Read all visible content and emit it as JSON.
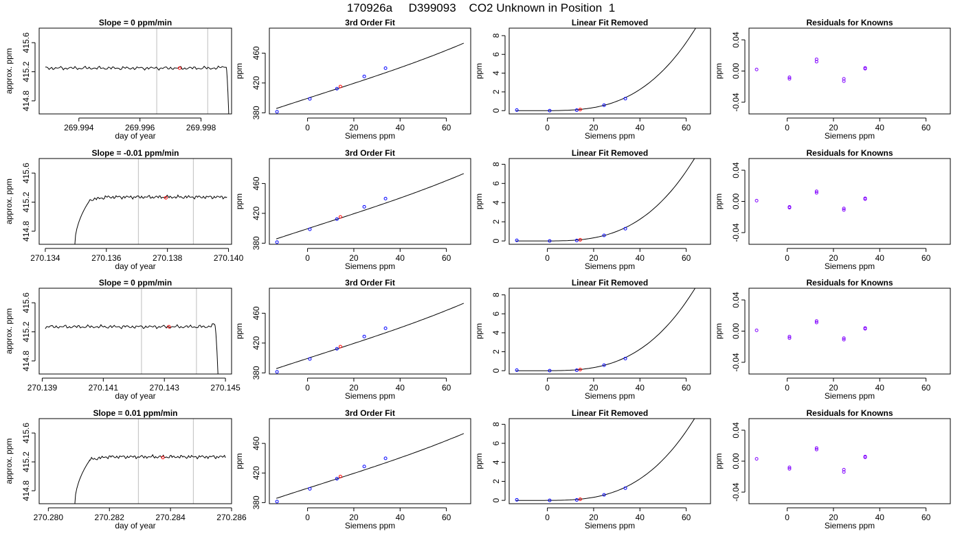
{
  "page": {
    "title": "170926a     D399093    CO2 Unknown in Position  1"
  },
  "colors": {
    "trace": "#000000",
    "marker_band": "#c8c8c8",
    "unknown_point": "#ff0000",
    "known_point": "#0000ff",
    "residual_point": "#8000ff"
  },
  "chart_data": [
    {
      "type": "line",
      "title": "Slope =  0  ppm/min",
      "xlabel": "day of year",
      "ylabel": "approx. ppm",
      "xlim": [
        269.9927,
        269.999
      ],
      "ylim": [
        414.62,
        415.8
      ],
      "xticks": [
        269.994,
        269.996,
        269.998
      ],
      "xtick_labels": [
        "269.994",
        "269.996",
        "269.998"
      ],
      "yticks": [
        414.8,
        415.2,
        415.6
      ],
      "ytick_labels": [
        "414.8",
        "415.2",
        "415.6"
      ],
      "trace": {
        "x_start": 269.9929,
        "x_end": 269.9988,
        "level": 415.25,
        "rise_start": null,
        "rise_end": null,
        "drop_start": 269.99882,
        "drop_end": 269.99892
      },
      "vertical_lines": [
        269.99655,
        269.99822
      ],
      "point": {
        "x": 269.9973,
        "y": 415.25
      }
    },
    {
      "type": "line",
      "title": "3rd Order Fit",
      "xlabel": "Siemens ppm",
      "ylabel": "ppm",
      "xlim": [
        -16.5,
        70.5
      ],
      "ylim": [
        378.5,
        493.5
      ],
      "xticks": [
        0,
        20,
        40,
        60
      ],
      "xtick_labels": [
        "0",
        "20",
        "40",
        "60"
      ],
      "yticks": [
        380,
        420,
        460
      ],
      "ytick_labels": [
        "380",
        "420",
        "460"
      ],
      "curve": {
        "x_start": -13.5,
        "x_end": 67.5,
        "offset": 399.4,
        "slope": 1.0,
        "cubic": 2.64e-05
      },
      "known_points": [
        [
          -13.2,
          381.4
        ],
        [
          1.0,
          398.6
        ],
        [
          12.7,
          412.3
        ],
        [
          24.5,
          428.8
        ],
        [
          33.7,
          439.8
        ]
      ],
      "unknown_point": [
        14.2,
        415.2
      ]
    },
    {
      "type": "line",
      "title": "Linear Fit Removed",
      "xlabel": "Siemens ppm",
      "ylabel": "ppm",
      "xlim": [
        -16.5,
        70.5
      ],
      "ylim": [
        -0.35,
        8.8
      ],
      "xticks": [
        0,
        20,
        40,
        60
      ],
      "xtick_labels": [
        "0",
        "20",
        "40",
        "60"
      ],
      "yticks": [
        0,
        2,
        4,
        6,
        8
      ],
      "ytick_labels": [
        "0",
        "2",
        "4",
        "6",
        "8"
      ],
      "curve": {
        "x_start": -13.5,
        "x_end": 67.5,
        "offset": 0,
        "slope": 0,
        "cubic": 2.64e-05
      },
      "known_points": [
        [
          -13.2,
          0.06
        ],
        [
          1.0,
          0.0
        ],
        [
          12.7,
          0.05
        ],
        [
          24.5,
          0.58
        ],
        [
          33.7,
          1.28
        ]
      ],
      "unknown_point": [
        14.2,
        0.12
      ]
    },
    {
      "type": "scatter",
      "title": "Residuals for Knowns",
      "xlabel": "Siemens ppm",
      "ylabel": "ppm",
      "xlim": [
        -16.5,
        70.5
      ],
      "ylim": [
        -0.055,
        0.055
      ],
      "xticks": [
        0,
        20,
        40,
        60
      ],
      "xtick_labels": [
        "0",
        "20",
        "40",
        "60"
      ],
      "yticks": [
        -0.04,
        0.0,
        0.04
      ],
      "ytick_labels": [
        "-0.04",
        "0.00",
        "0.04"
      ],
      "points": [
        [
          -13.2,
          0.002
        ],
        [
          1.0,
          -0.008
        ],
        [
          1.0,
          -0.01
        ],
        [
          12.7,
          0.015
        ],
        [
          12.7,
          0.012
        ],
        [
          24.5,
          -0.01
        ],
        [
          24.5,
          -0.013
        ],
        [
          33.7,
          0.004
        ],
        [
          33.7,
          0.003
        ]
      ]
    },
    {
      "type": "line",
      "title": "Slope =  -0.01  ppm/min",
      "xlabel": "day of year",
      "ylabel": "approx. ppm",
      "xlim": [
        270.1338,
        270.1401
      ],
      "ylim": [
        414.62,
        415.8
      ],
      "xticks": [
        270.134,
        270.136,
        270.138,
        270.14
      ],
      "xtick_labels": [
        "270.134",
        "270.136",
        "270.138",
        "270.140"
      ],
      "yticks": [
        414.8,
        415.2,
        415.6
      ],
      "ytick_labels": [
        "414.8",
        "415.2",
        "415.6"
      ],
      "trace": {
        "x_start": 270.13495,
        "x_end": 270.13995,
        "level": 415.27,
        "rise_start": 270.13495,
        "rise_end": 270.13545,
        "drop_start": null,
        "drop_end": null
      },
      "vertical_lines": [
        270.13705,
        270.13885
      ],
      "point": {
        "x": 270.13795,
        "y": 415.26
      }
    },
    {
      "type": "line",
      "title": "3rd Order Fit",
      "xlabel": "Siemens ppm",
      "ylabel": "ppm",
      "xlim": [
        -16.5,
        70.5
      ],
      "ylim": [
        378.5,
        493.5
      ],
      "xticks": [
        0,
        20,
        40,
        60
      ],
      "xtick_labels": [
        "0",
        "20",
        "40",
        "60"
      ],
      "yticks": [
        380,
        420,
        460
      ],
      "ytick_labels": [
        "380",
        "420",
        "460"
      ],
      "curve": {
        "x_start": -13.5,
        "x_end": 67.5,
        "offset": 399.4,
        "slope": 1.0,
        "cubic": 2.64e-05
      },
      "known_points": [
        [
          -13.2,
          381.4
        ],
        [
          1.0,
          398.6
        ],
        [
          12.7,
          412.3
        ],
        [
          24.5,
          428.8
        ],
        [
          33.7,
          439.8
        ]
      ],
      "unknown_point": [
        14.2,
        415.2
      ]
    },
    {
      "type": "line",
      "title": "Linear Fit Removed",
      "xlabel": "Siemens ppm",
      "ylabel": "ppm",
      "xlim": [
        -16.5,
        70.5
      ],
      "ylim": [
        -0.35,
        8.6
      ],
      "xticks": [
        0,
        20,
        40,
        60
      ],
      "xtick_labels": [
        "0",
        "20",
        "40",
        "60"
      ],
      "yticks": [
        0,
        2,
        4,
        6,
        8
      ],
      "ytick_labels": [
        "0",
        "2",
        "4",
        "6",
        "8"
      ],
      "curve": {
        "x_start": -13.5,
        "x_end": 67.5,
        "offset": 0,
        "slope": 0,
        "cubic": 2.64e-05
      },
      "known_points": [
        [
          -13.2,
          0.06
        ],
        [
          1.0,
          0.0
        ],
        [
          12.7,
          0.05
        ],
        [
          24.5,
          0.58
        ],
        [
          33.7,
          1.28
        ]
      ],
      "unknown_point": [
        14.2,
        0.12
      ]
    },
    {
      "type": "scatter",
      "title": "Residuals for Knowns",
      "xlabel": "Siemens ppm",
      "ylabel": "ppm",
      "xlim": [
        -16.5,
        70.5
      ],
      "ylim": [
        -0.055,
        0.055
      ],
      "xticks": [
        0,
        20,
        40,
        60
      ],
      "xtick_labels": [
        "0",
        "20",
        "40",
        "60"
      ],
      "yticks": [
        -0.04,
        0.0,
        0.04
      ],
      "ytick_labels": [
        "-0.04",
        "0.00",
        "0.04"
      ],
      "points": [
        [
          -13.2,
          0.001
        ],
        [
          1.0,
          -0.007
        ],
        [
          1.0,
          -0.008
        ],
        [
          12.7,
          0.013
        ],
        [
          12.7,
          0.011
        ],
        [
          24.5,
          -0.009
        ],
        [
          24.5,
          -0.011
        ],
        [
          33.7,
          0.004
        ],
        [
          33.7,
          0.003
        ]
      ]
    },
    {
      "type": "line",
      "title": "Slope =  0  ppm/min",
      "xlabel": "day of year",
      "ylabel": "approx. ppm",
      "xlim": [
        270.1389,
        270.1452
      ],
      "ylim": [
        414.62,
        415.8
      ],
      "xticks": [
        270.139,
        270.141,
        270.143,
        270.145
      ],
      "xtick_labels": [
        "270.139",
        "270.141",
        "270.143",
        "270.145"
      ],
      "yticks": [
        414.8,
        415.2,
        415.6
      ],
      "ytick_labels": [
        "414.8",
        "415.2",
        "415.6"
      ],
      "trace": {
        "x_start": 270.1391,
        "x_end": 270.1447,
        "level": 415.27,
        "rise_start": null,
        "rise_end": null,
        "drop_start": 270.14465,
        "drop_end": 270.14477
      },
      "vertical_lines": [
        270.14225,
        270.14405
      ],
      "point": {
        "x": 270.14315,
        "y": 415.27
      }
    },
    {
      "type": "line",
      "title": "3rd Order Fit",
      "xlabel": "Siemens ppm",
      "ylabel": "ppm",
      "xlim": [
        -16.5,
        70.5
      ],
      "ylim": [
        378.5,
        493.5
      ],
      "xticks": [
        0,
        20,
        40,
        60
      ],
      "xtick_labels": [
        "0",
        "20",
        "40",
        "60"
      ],
      "yticks": [
        380,
        420,
        460
      ],
      "ytick_labels": [
        "380",
        "420",
        "460"
      ],
      "curve": {
        "x_start": -13.5,
        "x_end": 67.5,
        "offset": 399.4,
        "slope": 1.0,
        "cubic": 2.64e-05
      },
      "known_points": [
        [
          -13.2,
          381.4
        ],
        [
          1.0,
          398.6
        ],
        [
          12.7,
          412.3
        ],
        [
          24.5,
          428.8
        ],
        [
          33.7,
          439.8
        ]
      ],
      "unknown_point": [
        14.2,
        415.2
      ]
    },
    {
      "type": "line",
      "title": "Linear Fit Removed",
      "xlabel": "Siemens ppm",
      "ylabel": "ppm",
      "xlim": [
        -16.5,
        70.5
      ],
      "ylim": [
        -0.35,
        8.7
      ],
      "xticks": [
        0,
        20,
        40,
        60
      ],
      "xtick_labels": [
        "0",
        "20",
        "40",
        "60"
      ],
      "yticks": [
        0,
        2,
        4,
        6,
        8
      ],
      "ytick_labels": [
        "0",
        "2",
        "4",
        "6",
        "8"
      ],
      "curve": {
        "x_start": -13.5,
        "x_end": 67.5,
        "offset": 0,
        "slope": 0,
        "cubic": 2.64e-05
      },
      "known_points": [
        [
          -13.2,
          0.06
        ],
        [
          1.0,
          0.0
        ],
        [
          12.7,
          0.05
        ],
        [
          24.5,
          0.58
        ],
        [
          33.7,
          1.28
        ]
      ],
      "unknown_point": [
        14.2,
        0.12
      ]
    },
    {
      "type": "scatter",
      "title": "Residuals for Knowns",
      "xlabel": "Siemens ppm",
      "ylabel": "ppm",
      "xlim": [
        -16.5,
        70.5
      ],
      "ylim": [
        -0.055,
        0.055
      ],
      "xticks": [
        0,
        20,
        40,
        60
      ],
      "xtick_labels": [
        "0",
        "20",
        "40",
        "60"
      ],
      "yticks": [
        -0.04,
        0.0,
        0.04
      ],
      "ytick_labels": [
        "-0.04",
        "0.00",
        "0.04"
      ],
      "points": [
        [
          -13.2,
          0.001
        ],
        [
          1.0,
          -0.007
        ],
        [
          1.0,
          -0.009
        ],
        [
          12.7,
          0.013
        ],
        [
          12.7,
          0.011
        ],
        [
          24.5,
          -0.009
        ],
        [
          24.5,
          -0.011
        ],
        [
          33.7,
          0.004
        ],
        [
          33.7,
          0.003
        ]
      ]
    },
    {
      "type": "line",
      "title": "Slope =  0.01  ppm/min",
      "xlabel": "day of year",
      "ylabel": "approx. ppm",
      "xlim": [
        270.2797,
        270.286
      ],
      "ylim": [
        414.62,
        415.8
      ],
      "xticks": [
        270.28,
        270.282,
        270.284,
        270.286
      ],
      "xtick_labels": [
        "270.280",
        "270.282",
        "270.284",
        "270.286"
      ],
      "yticks": [
        414.8,
        415.2,
        415.6
      ],
      "ytick_labels": [
        "414.8",
        "415.2",
        "415.6"
      ],
      "trace": {
        "x_start": 270.28085,
        "x_end": 270.2858,
        "level": 415.27,
        "rise_start": 270.28085,
        "rise_end": 270.28135,
        "drop_start": null,
        "drop_end": null
      },
      "vertical_lines": [
        270.28295,
        270.28475
      ],
      "point": {
        "x": 270.28375,
        "y": 415.26
      }
    },
    {
      "type": "line",
      "title": "3rd Order Fit",
      "xlabel": "Siemens ppm",
      "ylabel": "ppm",
      "xlim": [
        -16.5,
        70.5
      ],
      "ylim": [
        378.5,
        493.5
      ],
      "xticks": [
        0,
        20,
        40,
        60
      ],
      "xtick_labels": [
        "0",
        "20",
        "40",
        "60"
      ],
      "yticks": [
        380,
        420,
        460
      ],
      "ytick_labels": [
        "380",
        "420",
        "460"
      ],
      "curve": {
        "x_start": -13.5,
        "x_end": 67.5,
        "offset": 399.4,
        "slope": 1.0,
        "cubic": 2.64e-05
      },
      "known_points": [
        [
          -13.2,
          381.4
        ],
        [
          1.0,
          398.6
        ],
        [
          12.7,
          412.3
        ],
        [
          24.5,
          428.8
        ],
        [
          33.7,
          439.8
        ]
      ],
      "unknown_point": [
        14.2,
        415.2
      ]
    },
    {
      "type": "line",
      "title": "Linear Fit Removed",
      "xlabel": "Siemens ppm",
      "ylabel": "ppm",
      "xlim": [
        -16.5,
        70.5
      ],
      "ylim": [
        -0.35,
        8.6
      ],
      "xticks": [
        0,
        20,
        40,
        60
      ],
      "xtick_labels": [
        "0",
        "20",
        "40",
        "60"
      ],
      "yticks": [
        0,
        2,
        4,
        6,
        8
      ],
      "ytick_labels": [
        "0",
        "2",
        "4",
        "6",
        "8"
      ],
      "curve": {
        "x_start": -13.5,
        "x_end": 67.5,
        "offset": 0,
        "slope": 0,
        "cubic": 2.64e-05
      },
      "known_points": [
        [
          -13.2,
          0.06
        ],
        [
          1.0,
          0.0
        ],
        [
          12.7,
          0.05
        ],
        [
          24.5,
          0.58
        ],
        [
          33.7,
          1.28
        ]
      ],
      "unknown_point": [
        14.2,
        0.12
      ]
    },
    {
      "type": "scatter",
      "title": "Residuals for Knowns",
      "xlabel": "Siemens ppm",
      "ylabel": "ppm",
      "xlim": [
        -16.5,
        70.5
      ],
      "ylim": [
        -0.055,
        0.055
      ],
      "xticks": [
        0,
        20,
        40,
        60
      ],
      "xtick_labels": [
        "0",
        "20",
        "40",
        "60"
      ],
      "yticks": [
        -0.04,
        0.0,
        0.04
      ],
      "ytick_labels": [
        "-0.04",
        "0.00",
        "0.04"
      ],
      "points": [
        [
          -13.2,
          0.003
        ],
        [
          1.0,
          -0.008
        ],
        [
          1.0,
          -0.01
        ],
        [
          12.7,
          0.017
        ],
        [
          12.7,
          0.015
        ],
        [
          24.5,
          -0.011
        ],
        [
          24.5,
          -0.014
        ],
        [
          33.7,
          0.006
        ],
        [
          33.7,
          0.005
        ]
      ]
    }
  ]
}
